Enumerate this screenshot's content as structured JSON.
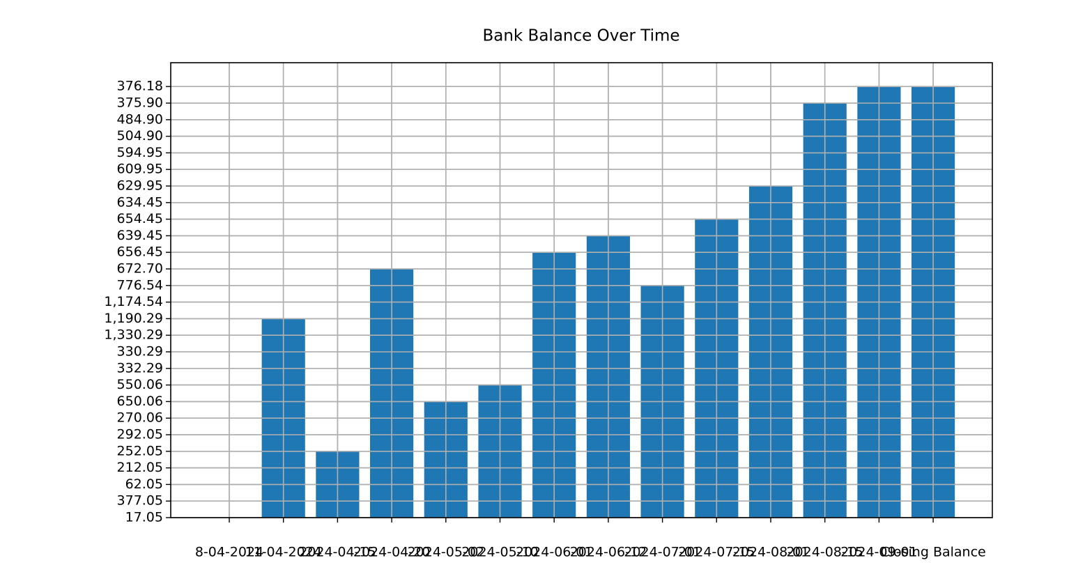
{
  "chart_data": {
    "type": "bar",
    "title": "Bank Balance Over Time",
    "categories": [
      "8-04-2024",
      "11-04-2024",
      "2024-04-15",
      "2024-04-20",
      "2024-05-02",
      "2024-05-10",
      "2024-06-01",
      "2024-06-12",
      "2024-07-01",
      "2024-07-15",
      "2024-08-01",
      "2024-08-15",
      "2024-09-01",
      "Closing Balance"
    ],
    "values": [
      "17.05",
      "1,190.29",
      "252.05",
      "672.70",
      "650.06",
      "550.06",
      "656.45",
      "639.45",
      "776.54",
      "654.45",
      "629.95",
      "375.90",
      "376.18",
      "376.18"
    ],
    "ycategories": [
      "17.05",
      "377.05",
      "62.05",
      "212.05",
      "252.05",
      "292.05",
      "270.06",
      "650.06",
      "550.06",
      "332.29",
      "330.29",
      "1,330.29",
      "1,190.29",
      "1,174.54",
      "776.54",
      "672.70",
      "656.45",
      "639.45",
      "654.45",
      "634.45",
      "629.95",
      "609.95",
      "594.95",
      "504.90",
      "484.90",
      "375.90",
      "376.18"
    ],
    "color": "#1f77b4",
    "grid": true
  }
}
